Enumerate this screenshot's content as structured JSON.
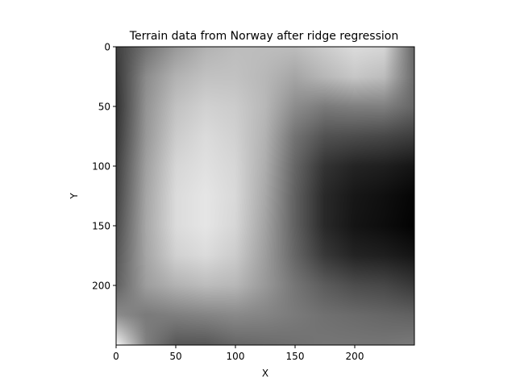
{
  "chart_data": {
    "type": "heatmap",
    "title": "Terrain data from Norway after ridge regression",
    "xlabel": "X",
    "ylabel": "Y",
    "colormap": "gray",
    "x_range": [
      0,
      250
    ],
    "y_range": [
      0,
      250
    ],
    "y_axis_inverted": true,
    "x_ticks": [
      0,
      50,
      100,
      150,
      200
    ],
    "y_ticks": [
      0,
      50,
      100,
      150,
      200
    ],
    "grid": false,
    "legend": "none",
    "intensity_grid_columns_x": [
      0,
      25,
      50,
      75,
      100,
      125,
      150,
      175,
      200,
      225,
      250
    ],
    "intensity_grid_rows_y": [
      0,
      25,
      50,
      75,
      100,
      125,
      150,
      175,
      200,
      225,
      250
    ],
    "intensity_grid": [
      [
        0.25,
        0.45,
        0.6,
        0.7,
        0.74,
        0.74,
        0.74,
        0.8,
        0.86,
        0.84,
        0.4
      ],
      [
        0.22,
        0.55,
        0.7,
        0.76,
        0.76,
        0.72,
        0.65,
        0.72,
        0.78,
        0.74,
        0.42
      ],
      [
        0.2,
        0.58,
        0.76,
        0.82,
        0.8,
        0.72,
        0.55,
        0.48,
        0.5,
        0.5,
        0.4
      ],
      [
        0.22,
        0.6,
        0.8,
        0.86,
        0.82,
        0.7,
        0.45,
        0.32,
        0.3,
        0.28,
        0.24
      ],
      [
        0.25,
        0.63,
        0.84,
        0.88,
        0.84,
        0.68,
        0.4,
        0.2,
        0.14,
        0.12,
        0.08
      ],
      [
        0.27,
        0.65,
        0.86,
        0.9,
        0.85,
        0.66,
        0.38,
        0.16,
        0.09,
        0.06,
        0.02
      ],
      [
        0.3,
        0.66,
        0.86,
        0.9,
        0.84,
        0.64,
        0.38,
        0.16,
        0.08,
        0.05,
        0.01
      ],
      [
        0.34,
        0.65,
        0.82,
        0.86,
        0.8,
        0.62,
        0.4,
        0.22,
        0.14,
        0.12,
        0.08
      ],
      [
        0.38,
        0.62,
        0.7,
        0.74,
        0.72,
        0.6,
        0.46,
        0.36,
        0.3,
        0.28,
        0.22
      ],
      [
        0.55,
        0.48,
        0.5,
        0.52,
        0.54,
        0.52,
        0.48,
        0.44,
        0.42,
        0.4,
        0.38
      ],
      [
        0.96,
        0.5,
        0.34,
        0.34,
        0.4,
        0.42,
        0.44,
        0.46,
        0.46,
        0.46,
        0.48
      ]
    ]
  }
}
